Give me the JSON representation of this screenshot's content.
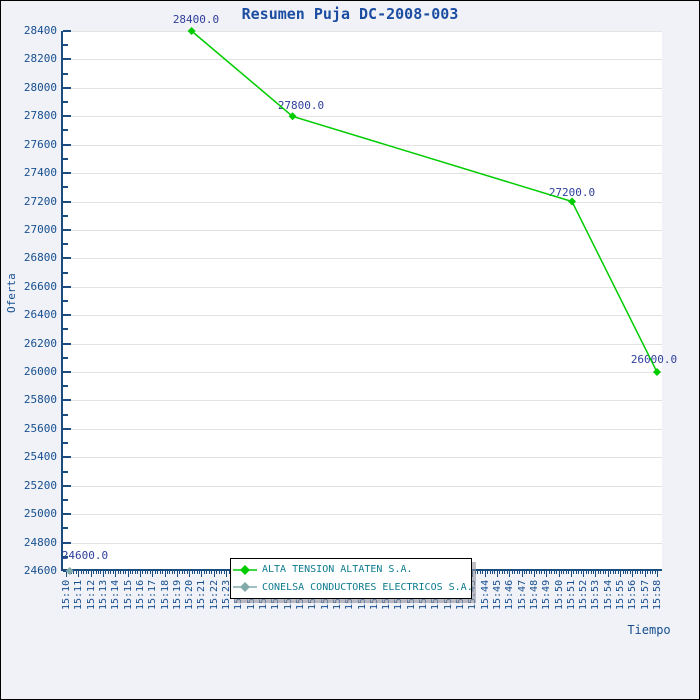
{
  "window": {
    "background": "#f1f1f8",
    "border_color": "#000000"
  },
  "colors": {
    "plot_background": "#ffffff",
    "gridline": "#e3e3e3",
    "axis": "#1a4c80",
    "tick_label_text": "#16508e",
    "title_text": "#1b4da1",
    "point_label_text": "#2f3f9c",
    "legend_text": "#0d7b8e",
    "legend_border": "#000000"
  },
  "chart_data": {
    "type": "line",
    "title": "Resumen Puja DC-2008-003",
    "xlabel": "Tiempo",
    "ylabel": "Oferta",
    "ylim": [
      24600,
      28400
    ],
    "y_tick_step": 200,
    "y_minor_tick_step": 100,
    "grid": "horizontal-only",
    "legend_position": "bottom-center",
    "x_ticks": [
      "15:10",
      "15:11",
      "15:12",
      "15:13",
      "15:14",
      "15:15",
      "15:16",
      "15:17",
      "15:18",
      "15:19",
      "15:20",
      "15:21",
      "15:22",
      "15:23",
      "15:24",
      "15:25",
      "15:26",
      "15:27",
      "15:28",
      "15:29",
      "15:30",
      "15:31",
      "15:32",
      "15:33",
      "15:34",
      "15:35",
      "15:36",
      "15:37",
      "15:38",
      "15:39",
      "15:40",
      "15:41",
      "15:42",
      "15:43",
      "15:44",
      "15:45",
      "15:46",
      "15:47",
      "15:48",
      "15:49",
      "15:50",
      "15:51",
      "15:52",
      "15:53",
      "15:54",
      "15:55",
      "15:56",
      "15:57",
      "15:58"
    ],
    "series": [
      {
        "name": "ALTA TENSION ALTATEN S.A.",
        "color": "#00cc00",
        "marker": "diamond",
        "points": [
          {
            "time": "15:20",
            "minute_offset": 10.2,
            "value": 28400.0,
            "label": "28400.0",
            "label_dx": 4,
            "label_dy": -18
          },
          {
            "time": "15:28",
            "minute_offset": 18.4,
            "value": 27800.0,
            "label": "27800.0",
            "label_dx": 8,
            "label_dy": -17
          },
          {
            "time": "15:51",
            "minute_offset": 41.1,
            "value": 27200.0,
            "label": "27200.0",
            "label_dx": 0,
            "label_dy": -16
          },
          {
            "time": "15:58",
            "minute_offset": 48.0,
            "value": 26000.0,
            "label": "26000.0",
            "label_dx": -3,
            "label_dy": -19
          }
        ]
      },
      {
        "name": "CONELSA CONDUCTORES ELECTRICOS S.A.",
        "color": "#81aaa8",
        "marker": "diamond",
        "points": [
          {
            "time": "15:10",
            "minute_offset": 0.3,
            "value": 24600.0,
            "label": "24600.0",
            "label_dx": 15,
            "label_dy": -22
          }
        ]
      }
    ]
  }
}
